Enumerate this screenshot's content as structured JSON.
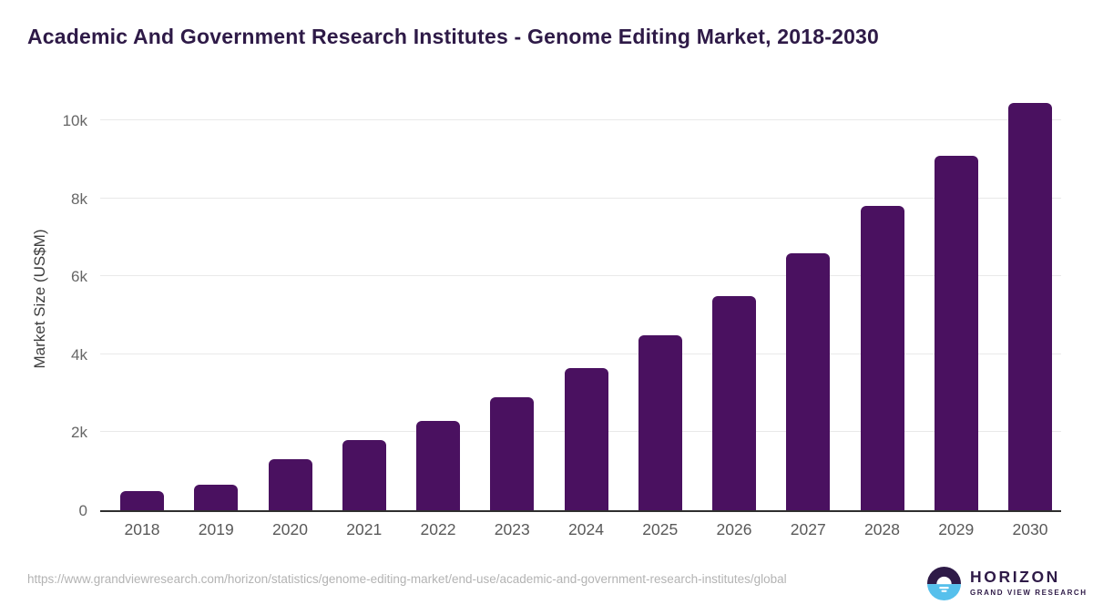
{
  "page": {
    "title": "Academic And Government Research Institutes - Genome Editing Market, 2018-2030"
  },
  "chart_data": {
    "type": "bar",
    "title": "Academic And Government Research Institutes - Genome Editing Market, 2018-2030",
    "categories": [
      "2018",
      "2019",
      "2020",
      "2021",
      "2022",
      "2023",
      "2024",
      "2025",
      "2026",
      "2027",
      "2028",
      "2029",
      "2030"
    ],
    "values": [
      500,
      650,
      1300,
      1800,
      2300,
      2900,
      3650,
      4500,
      5500,
      6600,
      7800,
      9100,
      10450
    ],
    "xlabel": "",
    "ylabel": "Market Size (US$M)",
    "yticks": [
      "0",
      "2k",
      "4k",
      "6k",
      "8k",
      "10k"
    ],
    "ytick_values": [
      0,
      2000,
      4000,
      6000,
      8000,
      10000
    ],
    "ylim": [
      0,
      10870
    ],
    "grid": true,
    "legend": false,
    "bar_color": "#4a1160",
    "axis_line_color": "#2f2f2f",
    "gridline_color": "#e9e9e9",
    "tick_label_color": "#666666"
  },
  "footer": {
    "source_url": "https://www.grandviewresearch.com/horizon/statistics/genome-editing-market/end-use/academic-and-government-research-institutes/global",
    "logo": {
      "name": "HORIZON",
      "subtitle": "GRAND VIEW RESEARCH",
      "icon": "horizon-sun-circle-icon",
      "purple": "#2e1a47",
      "blue": "#56c0ec"
    }
  }
}
